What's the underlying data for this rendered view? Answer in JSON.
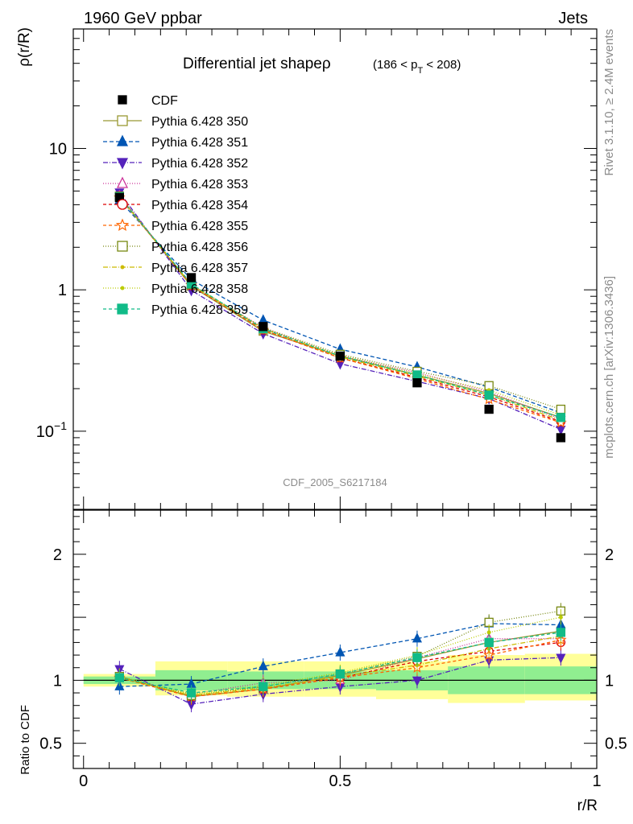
{
  "header": {
    "left": "1960 GeV ppbar",
    "right": "Jets"
  },
  "side_labels": {
    "rivet": "Rivet 3.1.10, ≥ 2.4M events",
    "mcplots": "mcplots.cern.ch [arXiv:1306.3436]"
  },
  "analysis_tag": "CDF_2005_S6217184",
  "colors": {
    "cdf": "#000000",
    "band_inner": "#90ee90",
    "band_outer": "#ffff99"
  },
  "chart_data": [
    {
      "type": "line",
      "title": "Differential jet shapeρ",
      "title_sub_pre": "(186 < p",
      "title_sub_idx": "T",
      "title_sub_post": " < 208)",
      "ylabel": "ρ(r/R)",
      "xlabel": "",
      "yscale": "log",
      "ylim": [
        0.028,
        70
      ],
      "xlim": [
        -0.02,
        1.0
      ],
      "y_ticks": [
        {
          "value": 10,
          "label": "10"
        },
        {
          "value": 1,
          "label": "1"
        },
        {
          "value": 0.1,
          "label": "10",
          "sup": "−1"
        }
      ],
      "x": [
        0.07,
        0.21,
        0.35,
        0.5,
        0.65,
        0.79,
        0.93
      ],
      "legend": "top-left",
      "reference": {
        "name": "CDF",
        "values": [
          4.5,
          1.22,
          0.55,
          0.34,
          0.22,
          0.143,
          0.09
        ]
      },
      "series": [
        {
          "name": "Pythia 6.428 350",
          "color": "#999933",
          "marker": "square-open",
          "dash": "",
          "values": [
            4.6,
            1.06,
            0.51,
            0.34,
            0.25,
            0.185,
            0.125
          ]
        },
        {
          "name": "Pythia 6.428 351",
          "color": "#0055b3",
          "marker": "triangle-up",
          "dash": "5,3",
          "values": [
            4.3,
            1.18,
            0.61,
            0.38,
            0.285,
            0.205,
            0.135
          ]
        },
        {
          "name": "Pythia 6.428 352",
          "color": "#5522bb",
          "marker": "triangle-down",
          "dash": "6,2,1,2",
          "values": [
            4.9,
            0.99,
            0.49,
            0.3,
            0.225,
            0.17,
            0.103
          ]
        },
        {
          "name": "Pythia 6.428 353",
          "color": "#cc3399",
          "marker": "triangle-open",
          "dash": "1,2",
          "values": [
            4.65,
            1.08,
            0.54,
            0.34,
            0.26,
            0.19,
            0.122
          ]
        },
        {
          "name": "Pythia 6.428 354",
          "color": "#dd0000",
          "marker": "circle-open",
          "dash": "4,3",
          "values": [
            4.55,
            1.07,
            0.52,
            0.33,
            0.24,
            0.175,
            0.117
          ]
        },
        {
          "name": "Pythia 6.428 355",
          "color": "#ff6600",
          "marker": "star-open",
          "dash": "4,3",
          "values": [
            4.5,
            1.08,
            0.52,
            0.33,
            0.235,
            0.168,
            0.115
          ]
        },
        {
          "name": "Pythia 6.428 356",
          "color": "#778811",
          "marker": "square-open",
          "dash": "1,2",
          "values": [
            4.6,
            1.09,
            0.54,
            0.35,
            0.265,
            0.21,
            0.143
          ]
        },
        {
          "name": "Pythia 6.428 357",
          "color": "#ccbb00",
          "marker": "dot",
          "dash": "6,2,1,2",
          "values": [
            4.55,
            1.08,
            0.53,
            0.335,
            0.245,
            0.18,
            0.12
          ]
        },
        {
          "name": "Pythia 6.428 358",
          "color": "#bbcc00",
          "marker": "dot",
          "dash": "1,2",
          "values": [
            4.6,
            1.09,
            0.535,
            0.345,
            0.255,
            0.195,
            0.13
          ]
        },
        {
          "name": "Pythia 6.428 359",
          "color": "#11bb88",
          "marker": "square",
          "dash": "4,3",
          "values": [
            4.55,
            1.1,
            0.53,
            0.34,
            0.25,
            0.18,
            0.125
          ]
        }
      ]
    },
    {
      "type": "line",
      "title": "",
      "ylabel": "Ratio to CDF",
      "xlabel": "r/R",
      "ylim": [
        0.3,
        2.35
      ],
      "xlim": [
        -0.02,
        1.0
      ],
      "y_ticks": [
        {
          "value": 2,
          "label": "2"
        },
        {
          "value": 1,
          "label": "1"
        },
        {
          "value": 0.5,
          "label": "0.5"
        }
      ],
      "x_ticks": [
        {
          "value": 0,
          "label": "0"
        },
        {
          "value": 0.5,
          "label": "0.5"
        },
        {
          "value": 1,
          "label": "1"
        }
      ],
      "x": [
        0.07,
        0.21,
        0.35,
        0.5,
        0.65,
        0.79,
        0.93
      ],
      "bands": {
        "edges": [
          0.0,
          0.14,
          0.28,
          0.43,
          0.57,
          0.71,
          0.86,
          1.0
        ],
        "inner": [
          [
            0.97,
            1.03
          ],
          [
            0.92,
            1.08
          ],
          [
            0.93,
            1.07
          ],
          [
            0.93,
            1.07
          ],
          [
            0.92,
            1.08
          ],
          [
            0.89,
            1.11
          ],
          [
            0.89,
            1.11
          ]
        ],
        "outer": [
          [
            0.95,
            1.05
          ],
          [
            0.88,
            1.15
          ],
          [
            0.87,
            1.15
          ],
          [
            0.87,
            1.15
          ],
          [
            0.85,
            1.15
          ],
          [
            0.82,
            1.2
          ],
          [
            0.84,
            1.21
          ]
        ]
      },
      "series": [
        {
          "name": "Pythia 6.428 350",
          "values": [
            1.03,
            0.87,
            0.93,
            1.04,
            1.17,
            1.3,
            1.39
          ]
        },
        {
          "name": "Pythia 6.428 351",
          "values": [
            0.95,
            0.97,
            1.11,
            1.22,
            1.33,
            1.45,
            1.44
          ]
        },
        {
          "name": "Pythia 6.428 352",
          "values": [
            1.09,
            0.81,
            0.89,
            0.95,
            1.0,
            1.16,
            1.18
          ]
        },
        {
          "name": "Pythia 6.428 353",
          "values": [
            1.03,
            0.89,
            0.98,
            1.0,
            1.18,
            1.33,
            1.33
          ]
        },
        {
          "name": "Pythia 6.428 354",
          "values": [
            1.02,
            0.87,
            0.93,
            1.02,
            1.15,
            1.23,
            1.3
          ]
        },
        {
          "name": "Pythia 6.428 355",
          "values": [
            1.02,
            0.87,
            0.93,
            1.02,
            1.1,
            1.2,
            1.32
          ]
        },
        {
          "name": "Pythia 6.428 356",
          "values": [
            1.03,
            0.88,
            0.95,
            1.05,
            1.19,
            1.46,
            1.55
          ]
        },
        {
          "name": "Pythia 6.428 357",
          "values": [
            1.02,
            0.88,
            0.94,
            1.03,
            1.12,
            1.25,
            1.35
          ]
        },
        {
          "name": "Pythia 6.428 358",
          "values": [
            1.03,
            0.89,
            0.96,
            1.06,
            1.2,
            1.38,
            1.5
          ]
        },
        {
          "name": "Pythia 6.428 359",
          "values": [
            1.02,
            0.9,
            0.95,
            1.05,
            1.18,
            1.3,
            1.38
          ]
        }
      ]
    }
  ]
}
